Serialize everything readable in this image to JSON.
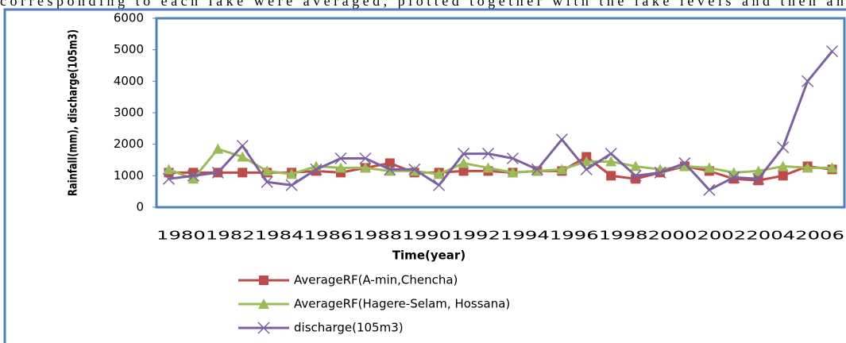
{
  "document_text": "corresponding to each lake were averaged, plotted together with the lake levels and then an",
  "chart_data": {
    "type": "line",
    "y_label": "Rainfall(mm), discharge(105m3)",
    "x_label": "Time(year)",
    "categories": [
      "1980",
      null,
      "1982",
      null,
      "1984",
      null,
      "1986",
      null,
      "1988",
      null,
      "1990",
      null,
      "1992",
      null,
      "1994",
      null,
      "1996",
      null,
      "1998",
      null,
      "2000",
      null,
      "2002",
      null,
      "2004",
      null,
      "2006",
      null
    ],
    "ylim": [
      0,
      6000
    ],
    "yticks": [
      0,
      1000,
      2000,
      3000,
      4000,
      5000,
      6000
    ],
    "legend": "bottom",
    "series": [
      {
        "name": "AverageRF(A-min,Chencha)",
        "color": "#be4b48",
        "marker": "square",
        "values": [
          1100,
          1100,
          1100,
          1100,
          1100,
          1100,
          1150,
          1100,
          1250,
          1400,
          1100,
          1100,
          1150,
          1150,
          1100,
          1150,
          1150,
          1600,
          1000,
          900,
          1100,
          1300,
          1150,
          900,
          850,
          1000,
          1300,
          1200
        ]
      },
      {
        "name": "AverageRF(Hagere-Selam, Hossana)",
        "color": "#9bbb59",
        "marker": "triangle",
        "values": [
          1200,
          900,
          1850,
          1600,
          1150,
          1050,
          1300,
          1250,
          1250,
          1150,
          1150,
          1050,
          1400,
          1250,
          1100,
          1150,
          1200,
          1450,
          1450,
          1300,
          1200,
          1300,
          1250,
          1100,
          1150,
          1300,
          1250,
          1250
        ]
      },
      {
        "name": "discharge(105m3)",
        "color": "#7d60a0",
        "marker": "x",
        "values": [
          900,
          1000,
          1100,
          1950,
          800,
          700,
          1200,
          1550,
          1550,
          1200,
          1200,
          700,
          1700,
          1700,
          1550,
          1200,
          2150,
          1200,
          1700,
          1000,
          1100,
          1400,
          550,
          950,
          900,
          1900,
          4000,
          4950
        ]
      }
    ]
  }
}
